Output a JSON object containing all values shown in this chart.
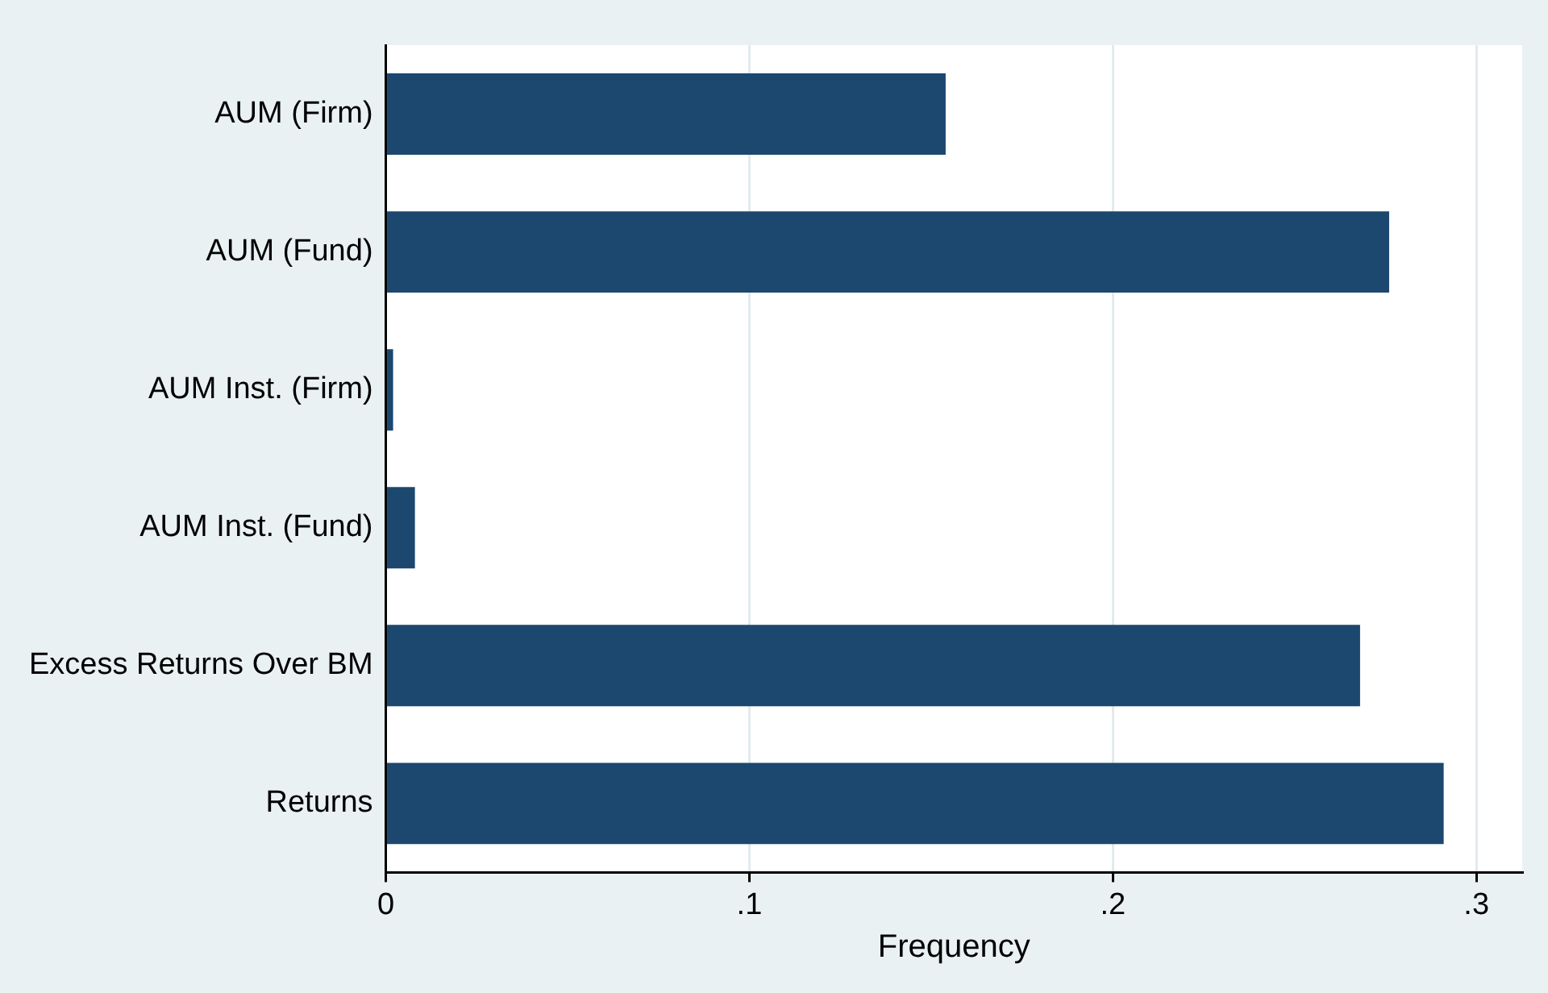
{
  "chart_data": {
    "type": "bar",
    "orientation": "horizontal",
    "xlabel": "Frequency",
    "categories": [
      "AUM (Firm)",
      "AUM (Fund)",
      "AUM Inst. (Firm)",
      "AUM Inst. (Fund)",
      "Excess Returns Over BM",
      "Returns"
    ],
    "values": [
      0.154,
      0.276,
      0.002,
      0.008,
      0.268,
      0.291
    ],
    "color": "#1c476e",
    "xlim": [
      0,
      0.3126
    ],
    "xticks": [
      {
        "value": 0,
        "label": "0"
      },
      {
        "value": 0.1,
        "label": ".1"
      },
      {
        "value": 0.2,
        "label": ".2"
      },
      {
        "value": 0.3,
        "label": ".3"
      }
    ],
    "grid": "x",
    "legend": false
  }
}
